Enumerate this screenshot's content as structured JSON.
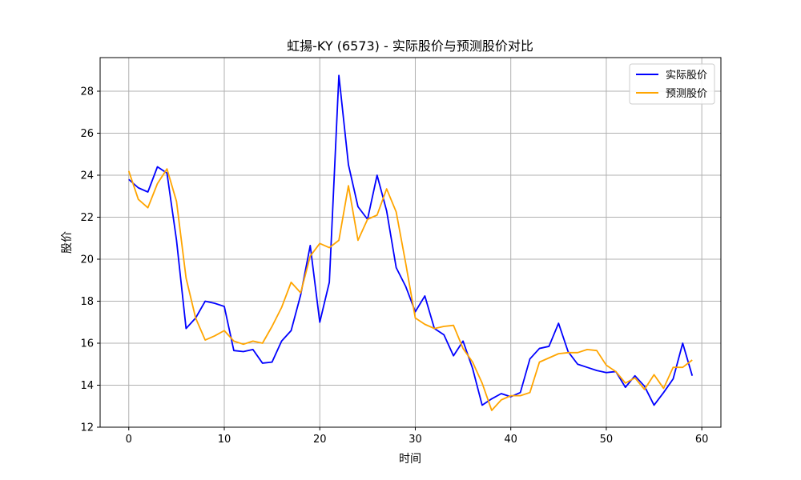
{
  "chart_data": {
    "type": "line",
    "title": "虹揚-KY (6573) - 实际股价与预测股价对比",
    "xlabel": "时间",
    "ylabel": "股价",
    "xlim": [
      -3,
      62
    ],
    "ylim": [
      12,
      29.6
    ],
    "xticks": [
      0,
      10,
      20,
      30,
      40,
      50,
      60
    ],
    "yticks": [
      12,
      14,
      16,
      18,
      20,
      22,
      24,
      26,
      28
    ],
    "grid": true,
    "legend_position": "top-right",
    "x": [
      0,
      1,
      2,
      3,
      4,
      5,
      6,
      7,
      8,
      9,
      10,
      11,
      12,
      13,
      14,
      15,
      16,
      17,
      18,
      19,
      20,
      21,
      22,
      23,
      24,
      25,
      26,
      27,
      28,
      29,
      30,
      31,
      32,
      33,
      34,
      35,
      36,
      37,
      38,
      39,
      40,
      41,
      42,
      43,
      44,
      45,
      46,
      47,
      48,
      49,
      50,
      51,
      52,
      53,
      54,
      55,
      56,
      57,
      58,
      59
    ],
    "series": [
      {
        "name": "实际股价",
        "color": "#0000ff",
        "values": [
          23.8,
          23.4,
          23.2,
          24.4,
          24.1,
          20.9,
          16.7,
          17.2,
          18.0,
          17.9,
          17.75,
          15.65,
          15.6,
          15.7,
          15.05,
          15.1,
          16.1,
          16.6,
          18.3,
          20.65,
          17.0,
          18.9,
          28.75,
          24.5,
          22.5,
          21.9,
          24.0,
          22.3,
          19.6,
          18.7,
          17.5,
          18.25,
          16.7,
          16.4,
          15.4,
          16.1,
          14.8,
          13.05,
          13.35,
          13.6,
          13.45,
          13.65,
          15.25,
          15.75,
          15.85,
          16.95,
          15.6,
          15.0,
          14.85,
          14.7,
          14.6,
          14.65,
          13.9,
          14.45,
          13.95,
          13.05,
          13.65,
          14.3,
          16.0,
          14.45
        ]
      },
      {
        "name": "预测股价",
        "color": "#ffa500",
        "values": [
          24.2,
          22.85,
          22.45,
          23.6,
          24.3,
          22.75,
          19.1,
          17.2,
          16.15,
          16.35,
          16.6,
          16.1,
          15.95,
          16.1,
          16.0,
          16.8,
          17.7,
          18.9,
          18.4,
          20.15,
          20.75,
          20.55,
          20.9,
          23.5,
          20.9,
          21.9,
          22.1,
          23.35,
          22.25,
          19.8,
          17.2,
          16.9,
          16.7,
          16.8,
          16.85,
          15.75,
          15.1,
          14.1,
          12.8,
          13.3,
          13.5,
          13.5,
          13.65,
          15.1,
          15.3,
          15.5,
          15.55,
          15.55,
          15.7,
          15.65,
          14.95,
          14.65,
          14.1,
          14.35,
          13.8,
          14.5,
          13.85,
          14.85,
          14.85,
          15.2
        ]
      }
    ]
  }
}
